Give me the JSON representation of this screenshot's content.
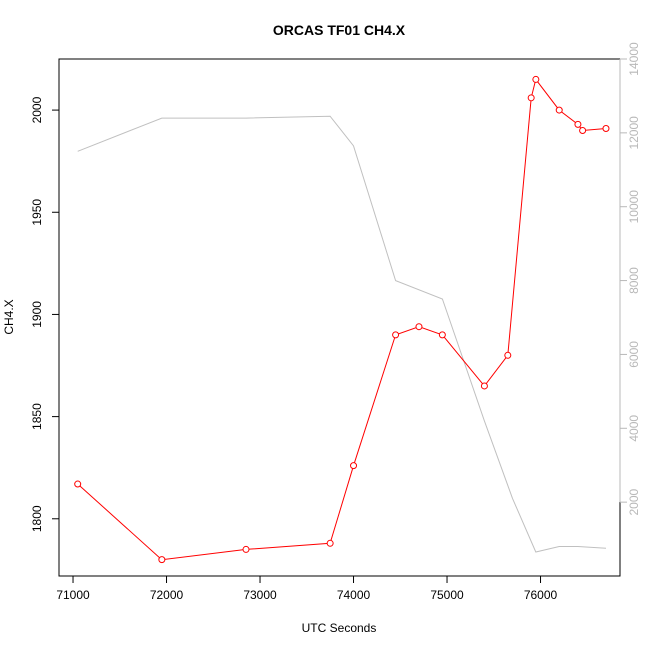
{
  "chart_data": {
    "type": "line",
    "title": "ORCAS TF01 CH4.X",
    "xlabel": "UTC Seconds",
    "ylabel": "CH4.X",
    "xlim": [
      70850,
      76850
    ],
    "ylim": [
      1772,
      2025
    ],
    "ylim_right": [
      0,
      14000
    ],
    "xticks": [
      71000,
      72000,
      73000,
      74000,
      75000,
      76000
    ],
    "yticks": [
      1800,
      1850,
      1900,
      1950,
      2000
    ],
    "yticks_right": [
      2000,
      4000,
      6000,
      8000,
      10000,
      12000,
      14000
    ],
    "grid": false,
    "colors": {
      "primary": "#ff0000",
      "secondary": "#c0c0c0"
    },
    "series": [
      {
        "axis": "left",
        "style": "line+points",
        "x": [
          71050,
          71950,
          72850,
          73750,
          74000,
          74450,
          74700,
          74950,
          75400,
          75650,
          75900,
          75950,
          76200,
          76400,
          76450,
          76700
        ],
        "y": [
          1817,
          1780,
          1785,
          1788,
          1826,
          1890,
          1894,
          1890,
          1865,
          1880,
          2006,
          2015,
          2000,
          1993,
          1990,
          1991
        ]
      },
      {
        "axis": "right",
        "style": "line",
        "x": [
          71050,
          71950,
          72850,
          73750,
          74000,
          74450,
          74950,
          75400,
          75700,
          75950,
          76200,
          76400,
          76700
        ],
        "y": [
          11500,
          12400,
          12400,
          12450,
          11650,
          8000,
          7500,
          4200,
          2100,
          650,
          800,
          800,
          750
        ]
      }
    ]
  }
}
